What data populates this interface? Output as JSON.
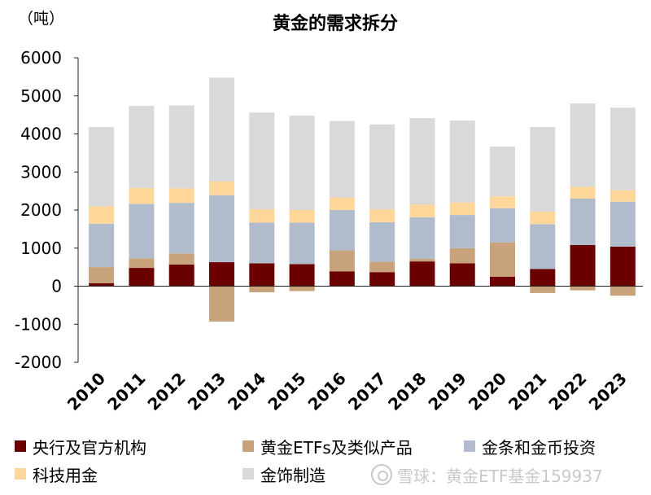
{
  "chart_data": {
    "type": "bar",
    "stacked": true,
    "title": "黄金的需求拆分",
    "unit_label": "（吨）",
    "ylim": [
      -2000,
      6000
    ],
    "yticks": [
      6000,
      5000,
      4000,
      3000,
      2000,
      1000,
      0,
      -1000,
      -2000
    ],
    "categories": [
      "2010",
      "2011",
      "2012",
      "2013",
      "2014",
      "2015",
      "2016",
      "2017",
      "2018",
      "2019",
      "2020",
      "2021",
      "2022",
      "2023"
    ],
    "series": [
      {
        "name": "央行及官方机构",
        "color": "#6b0000",
        "values": [
          80,
          480,
          570,
          630,
          600,
          580,
          390,
          370,
          650,
          600,
          250,
          450,
          1080,
          1040
        ]
      },
      {
        "name": "黄金ETFs及类似产品",
        "color": "#c8a27a",
        "values": [
          420,
          250,
          290,
          -930,
          -160,
          -130,
          550,
          270,
          70,
          400,
          900,
          -180,
          -110,
          -250
        ]
      },
      {
        "name": "金条和金币投资",
        "color": "#b0bccb",
        "values": [
          1140,
          1430,
          1330,
          1760,
          1070,
          1090,
          1060,
          1040,
          1090,
          870,
          900,
          1180,
          1220,
          1180
        ]
      },
      {
        "name": "科技用金",
        "color": "#ffd79a",
        "values": [
          460,
          420,
          380,
          360,
          350,
          330,
          330,
          340,
          335,
          330,
          310,
          330,
          310,
          300
        ]
      },
      {
        "name": "金饰制造",
        "color": "#d9d9d9",
        "values": [
          2080,
          2160,
          2180,
          2730,
          2540,
          2480,
          2010,
          2230,
          2270,
          2150,
          1310,
          2220,
          2190,
          2170
        ]
      }
    ]
  },
  "watermark": {
    "text": "雪球：黄金ETF基金159937"
  }
}
